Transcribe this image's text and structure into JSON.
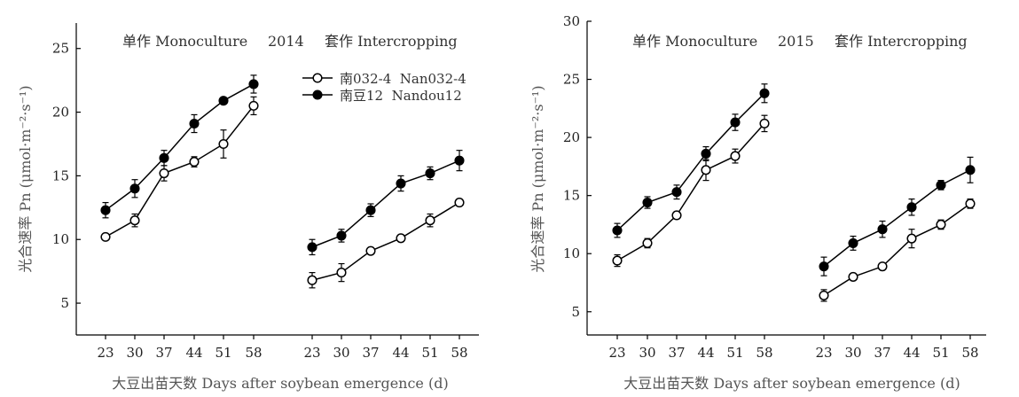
{
  "chart_data": [
    {
      "type": "line",
      "panel_label": "2014",
      "header_left": "单作 Monoculture",
      "header_right": "套作 Intercropping",
      "ylabel": "光合速率 Pn (μmol·m⁻²·s⁻¹)",
      "xlabel": "大豆出苗天数 Days after soybean emergence (d)",
      "ylim": [
        2.5,
        27
      ],
      "yticks": [
        5,
        10,
        15,
        20,
        25
      ],
      "x": [
        23,
        30,
        37,
        44,
        51,
        58
      ],
      "groups": [
        "Monoculture",
        "Intercropping"
      ],
      "series": [
        {
          "name": "南032-4  Nan032-4",
          "marker": "open-circle",
          "Monoculture": {
            "values": [
              10.2,
              11.5,
              15.2,
              16.1,
              17.5,
              20.5
            ],
            "errors": [
              0.2,
              0.5,
              0.6,
              0.4,
              1.1,
              0.7
            ]
          },
          "Intercropping": {
            "values": [
              6.8,
              7.4,
              9.1,
              10.1,
              11.5,
              12.9
            ],
            "errors": [
              0.6,
              0.7,
              0.2,
              0.2,
              0.5,
              0.2
            ]
          }
        },
        {
          "name": "南豆12  Nandou12",
          "marker": "filled-circle",
          "Monoculture": {
            "values": [
              12.3,
              14.0,
              16.4,
              19.1,
              20.9,
              22.2
            ],
            "errors": [
              0.6,
              0.7,
              0.6,
              0.7,
              0.2,
              0.7
            ]
          },
          "Intercropping": {
            "values": [
              9.4,
              10.3,
              12.3,
              14.4,
              15.2,
              16.2
            ],
            "errors": [
              0.6,
              0.5,
              0.5,
              0.6,
              0.5,
              0.8
            ]
          }
        }
      ]
    },
    {
      "type": "line",
      "panel_label": "2015",
      "header_left": "单作 Monoculture",
      "header_right": "套作 Intercropping",
      "ylabel": "光合速率 Pn (μmol·m⁻²·s⁻¹)",
      "xlabel": "大豆出苗天数 Days after soybean emergence (d)",
      "ylim": [
        3,
        30
      ],
      "yticks": [
        5,
        10,
        15,
        20,
        25,
        30
      ],
      "x": [
        23,
        30,
        37,
        44,
        51,
        58
      ],
      "groups": [
        "Monoculture",
        "Intercropping"
      ],
      "series": [
        {
          "name": "南032-4  Nan032-4",
          "marker": "open-circle",
          "Monoculture": {
            "values": [
              9.4,
              10.9,
              13.3,
              17.2,
              18.4,
              21.2
            ],
            "errors": [
              0.5,
              0.4,
              0.3,
              0.9,
              0.6,
              0.7
            ]
          },
          "Intercropping": {
            "values": [
              6.4,
              8.0,
              8.9,
              11.3,
              12.5,
              14.3
            ],
            "errors": [
              0.5,
              0.2,
              0.2,
              0.8,
              0.4,
              0.4
            ]
          }
        },
        {
          "name": "南豆12  Nandou12",
          "marker": "filled-circle",
          "Monoculture": {
            "values": [
              12.0,
              14.4,
              15.3,
              18.6,
              21.3,
              23.8
            ],
            "errors": [
              0.6,
              0.5,
              0.6,
              0.6,
              0.7,
              0.8
            ]
          },
          "Intercropping": {
            "values": [
              8.9,
              10.9,
              12.1,
              14.0,
              15.9,
              17.2
            ],
            "errors": [
              0.8,
              0.6,
              0.7,
              0.7,
              0.4,
              1.1
            ]
          }
        }
      ]
    }
  ]
}
